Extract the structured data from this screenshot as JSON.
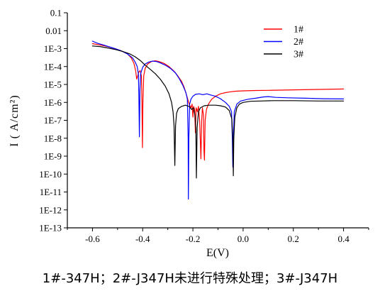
{
  "chart_data": {
    "type": "line",
    "xlabel": "E(V)",
    "ylabel": "I ( A/cm²)",
    "xlim": [
      -0.7,
      0.5
    ],
    "ylim": [
      1e-13,
      0.1
    ],
    "yscale": "log",
    "grid": false,
    "legend": "top-right",
    "x_ticks": [
      {
        "value": -0.6,
        "label": "-0.6"
      },
      {
        "value": -0.4,
        "label": "-0.4"
      },
      {
        "value": -0.2,
        "label": "-0.2"
      },
      {
        "value": 0.0,
        "label": "0.0"
      },
      {
        "value": 0.2,
        "label": "0.2"
      },
      {
        "value": 0.4,
        "label": "0.4"
      }
    ],
    "y_ticks": [
      {
        "value": 0.1,
        "label": "0.1"
      },
      {
        "value": 0.01,
        "label": "0.01"
      },
      {
        "value": 0.001,
        "label": "1E-3"
      },
      {
        "value": 0.0001,
        "label": "1E-4"
      },
      {
        "value": 1e-05,
        "label": "1E-5"
      },
      {
        "value": 1e-06,
        "label": "1E-6"
      },
      {
        "value": 1e-07,
        "label": "1E-7"
      },
      {
        "value": 1e-08,
        "label": "1E-8"
      },
      {
        "value": 1e-09,
        "label": "1E-9"
      },
      {
        "value": 1e-10,
        "label": "1E-10"
      },
      {
        "value": 1e-11,
        "label": "1E-11"
      },
      {
        "value": 1e-12,
        "label": "1E-12"
      },
      {
        "value": 1e-13,
        "label": "1E-13"
      }
    ],
    "series": [
      {
        "name": "1#",
        "color": "#ff0000",
        "points": [
          [
            -0.6,
            0.0019
          ],
          [
            -0.57,
            0.0016
          ],
          [
            -0.54,
            0.0013
          ],
          [
            -0.51,
            0.001
          ],
          [
            -0.48,
            0.0007
          ],
          [
            -0.46,
            0.0005
          ],
          [
            -0.445,
            0.0003
          ],
          [
            -0.435,
            0.00015
          ],
          [
            -0.428,
            6e-05
          ],
          [
            -0.424,
            2e-05
          ],
          [
            -0.42,
            3e-05
          ],
          [
            -0.415,
            5e-05
          ],
          [
            -0.41,
            6e-05
          ],
          [
            -0.405,
            3e-05
          ],
          [
            -0.403,
            1e-06
          ],
          [
            -0.401,
            3e-09
          ],
          [
            -0.399,
            1e-06
          ],
          [
            -0.396,
            3e-05
          ],
          [
            -0.39,
            8e-05
          ],
          [
            -0.38,
            0.00014
          ],
          [
            -0.365,
            0.00019
          ],
          [
            -0.35,
            0.00021
          ],
          [
            -0.335,
            0.00019
          ],
          [
            -0.315,
            0.00015
          ],
          [
            -0.295,
            0.0001
          ],
          [
            -0.275,
            5.5e-05
          ],
          [
            -0.26,
            3e-05
          ],
          [
            -0.245,
            1.5e-05
          ],
          [
            -0.235,
            7e-06
          ],
          [
            -0.225,
            2.5e-06
          ],
          [
            -0.215,
            8e-07
          ],
          [
            -0.208,
            5e-07
          ],
          [
            -0.203,
            8e-07
          ],
          [
            -0.2,
            1.5e-07
          ],
          [
            -0.197,
            6e-07
          ],
          [
            -0.193,
            4e-07
          ],
          [
            -0.19,
            2e-08
          ],
          [
            -0.187,
            5e-07
          ],
          [
            -0.182,
            3e-07
          ],
          [
            -0.178,
            6e-07
          ],
          [
            -0.173,
            1e-07
          ],
          [
            -0.17,
            5e-09
          ],
          [
            -0.168,
            7e-10
          ],
          [
            -0.165,
            1e-07
          ],
          [
            -0.162,
            5e-07
          ],
          [
            -0.158,
            2e-07
          ],
          [
            -0.156,
            2e-09
          ],
          [
            -0.154,
            6e-10
          ],
          [
            -0.151,
            1e-07
          ],
          [
            -0.146,
            4e-07
          ],
          [
            -0.138,
            8e-07
          ],
          [
            -0.125,
            1.5e-06
          ],
          [
            -0.11,
            2.2e-06
          ],
          [
            -0.09,
            3e-06
          ],
          [
            -0.07,
            3.5e-06
          ],
          [
            -0.05,
            3.9e-06
          ],
          [
            -0.03,
            4.2e-06
          ],
          [
            0.0,
            4.4e-06
          ],
          [
            0.05,
            4.6e-06
          ],
          [
            0.1,
            4.7e-06
          ],
          [
            0.2,
            5e-06
          ],
          [
            0.3,
            5.3e-06
          ],
          [
            0.4,
            5.6e-06
          ]
        ]
      },
      {
        "name": "2#",
        "color": "#0000ff",
        "points": [
          [
            -0.6,
            0.0026
          ],
          [
            -0.58,
            0.002
          ],
          [
            -0.55,
            0.0015
          ],
          [
            -0.52,
            0.0011
          ],
          [
            -0.49,
            0.0008
          ],
          [
            -0.46,
            0.0005
          ],
          [
            -0.44,
            0.0003
          ],
          [
            -0.43,
            0.00018
          ],
          [
            -0.422,
            0.0001
          ],
          [
            -0.417,
            4e-05
          ],
          [
            -0.415,
            2e-06
          ],
          [
            -0.413,
            1.2e-08
          ],
          [
            -0.411,
            5e-06
          ],
          [
            -0.408,
            4e-05
          ],
          [
            -0.4,
            9e-05
          ],
          [
            -0.39,
            0.00014
          ],
          [
            -0.375,
            0.00018
          ],
          [
            -0.36,
            0.0002
          ],
          [
            -0.345,
            0.00019
          ],
          [
            -0.33,
            0.00016
          ],
          [
            -0.31,
            0.00012
          ],
          [
            -0.29,
            8e-05
          ],
          [
            -0.27,
            4.5e-05
          ],
          [
            -0.255,
            2.2e-05
          ],
          [
            -0.24,
            9e-06
          ],
          [
            -0.228,
            3.5e-06
          ],
          [
            -0.222,
            1.5e-06
          ],
          [
            -0.219,
            1e-08
          ],
          [
            -0.218,
            4e-12
          ],
          [
            -0.216,
            1e-08
          ],
          [
            -0.213,
            8e-07
          ],
          [
            -0.208,
            1.5e-06
          ],
          [
            -0.2,
            2.2e-06
          ],
          [
            -0.19,
            2.8e-06
          ],
          [
            -0.175,
            3e-06
          ],
          [
            -0.16,
            2.7e-06
          ],
          [
            -0.145,
            3e-06
          ],
          [
            -0.13,
            2.6e-06
          ],
          [
            -0.11,
            2.2e-06
          ],
          [
            -0.09,
            1.6e-06
          ],
          [
            -0.07,
            1e-06
          ],
          [
            -0.055,
            6e-07
          ],
          [
            -0.046,
            3e-07
          ],
          [
            -0.043,
            1e-08
          ],
          [
            -0.041,
            2.5e-10
          ],
          [
            -0.039,
            1e-08
          ],
          [
            -0.035,
            3e-07
          ],
          [
            -0.025,
            8e-07
          ],
          [
            -0.01,
            1.2e-06
          ],
          [
            0.02,
            1.5e-06
          ],
          [
            0.05,
            1.7e-06
          ],
          [
            0.08,
            2e-06
          ],
          [
            0.1,
            2.1e-06
          ],
          [
            0.13,
            1.9e-06
          ],
          [
            0.18,
            1.8e-06
          ],
          [
            0.25,
            1.7e-06
          ],
          [
            0.32,
            1.6e-06
          ],
          [
            0.4,
            1.55e-06
          ]
        ]
      },
      {
        "name": "3#",
        "color": "#000000",
        "points": [
          [
            -0.6,
            0.0014
          ],
          [
            -0.57,
            0.0013
          ],
          [
            -0.54,
            0.0011
          ],
          [
            -0.51,
            0.0009
          ],
          [
            -0.48,
            0.0007
          ],
          [
            -0.45,
            0.0005
          ],
          [
            -0.43,
            0.00035
          ],
          [
            -0.41,
            0.00022
          ],
          [
            -0.39,
            0.00012
          ],
          [
            -0.37,
            7e-05
          ],
          [
            -0.35,
            4e-05
          ],
          [
            -0.33,
            2e-05
          ],
          [
            -0.31,
            8e-06
          ],
          [
            -0.295,
            3e-06
          ],
          [
            -0.285,
            1e-06
          ],
          [
            -0.279,
            3e-07
          ],
          [
            -0.275,
            5e-08
          ],
          [
            -0.272,
            3e-10
          ],
          [
            -0.269,
            5e-08
          ],
          [
            -0.265,
            2.5e-07
          ],
          [
            -0.258,
            4.5e-07
          ],
          [
            -0.245,
            6e-07
          ],
          [
            -0.23,
            7e-07
          ],
          [
            -0.215,
            6e-07
          ],
          [
            -0.205,
            4e-07
          ],
          [
            -0.198,
            5e-07
          ],
          [
            -0.192,
            2e-07
          ],
          [
            -0.188,
            3e-08
          ],
          [
            -0.186,
            6e-11
          ],
          [
            -0.183,
            4e-08
          ],
          [
            -0.178,
            3e-07
          ],
          [
            -0.17,
            5e-07
          ],
          [
            -0.155,
            6.5e-07
          ],
          [
            -0.135,
            7e-07
          ],
          [
            -0.11,
            7e-07
          ],
          [
            -0.09,
            6.5e-07
          ],
          [
            -0.07,
            5.5e-07
          ],
          [
            -0.055,
            3.5e-07
          ],
          [
            -0.045,
            1.2e-07
          ],
          [
            -0.041,
            1e-08
          ],
          [
            -0.039,
            8e-11
          ],
          [
            -0.037,
            1e-08
          ],
          [
            -0.033,
            1.5e-07
          ],
          [
            -0.025,
            5e-07
          ],
          [
            -0.015,
            8e-07
          ],
          [
            0.0,
            1e-06
          ],
          [
            0.03,
            1.15e-06
          ],
          [
            0.07,
            1.2e-06
          ],
          [
            0.12,
            1.25e-06
          ],
          [
            0.2,
            1.25e-06
          ],
          [
            0.3,
            1.2e-06
          ],
          [
            0.4,
            1.2e-06
          ]
        ]
      }
    ]
  },
  "caption": "1#-347H；2#-J347H未进行特殊处理；3#-J347H"
}
